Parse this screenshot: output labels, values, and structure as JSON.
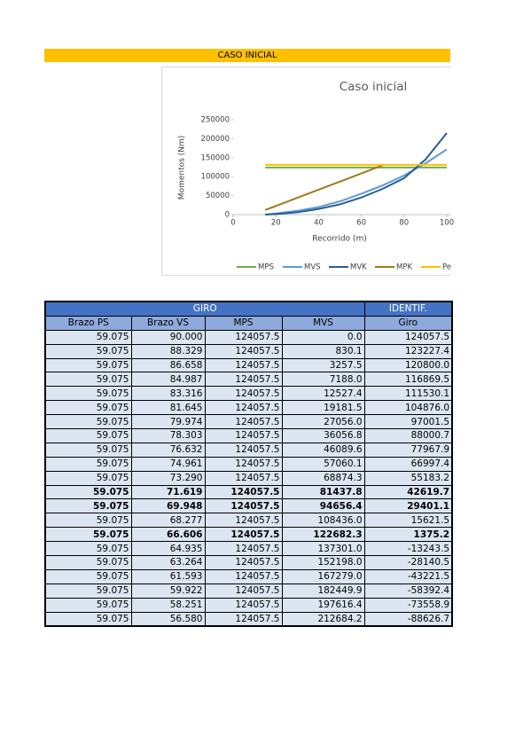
{
  "header": {
    "title": "CASO INICIAL"
  },
  "chart_data": {
    "type": "line",
    "title": "Caso inicial",
    "x_label": "Recorrido (m)",
    "y_label": "Momentos (Nm)",
    "x": [
      15,
      20,
      30,
      40,
      50,
      60,
      70,
      80,
      90,
      100
    ],
    "series": [
      {
        "name": "MPS",
        "color": "#70ad47",
        "values": [
          124057.5,
          124057.5,
          124057.5,
          124057.5,
          124057.5,
          124057.5,
          124057.5,
          124057.5,
          124057.5,
          124057.5
        ]
      },
      {
        "name": "MVS",
        "color": "#5b9bd5",
        "values": [
          0,
          3000,
          10000,
          20000,
          35000,
          55000,
          77000,
          103000,
          135000,
          172000
        ]
      },
      {
        "name": "MVK",
        "color": "#255e91",
        "values": [
          0,
          1500,
          6000,
          15000,
          27000,
          45000,
          68000,
          96000,
          145000,
          215000
        ]
      },
      {
        "name": "MPK",
        "color": "#9e7a1a",
        "values": [
          12000,
          22700,
          44200,
          65600,
          87000,
          108500,
          130000,
          null,
          null,
          null
        ]
      },
      {
        "name": "Pe",
        "color": "#ffc000",
        "values": [
          131000,
          131000,
          131000,
          131000,
          131000,
          131000,
          131000,
          131000,
          131000,
          131000
        ]
      }
    ],
    "xlim": [
      0,
      102
    ],
    "ylim": [
      0,
      250000
    ],
    "xticks": [
      0,
      20,
      40,
      60,
      80,
      100
    ],
    "yticks": [
      0,
      50000,
      100000,
      150000,
      200000,
      250000
    ],
    "legend": "bottom"
  },
  "table": {
    "group_headers": [
      "GIRO",
      "IDENTIF."
    ],
    "columns": [
      "Brazo PS",
      "Brazo VS",
      "MPS",
      "MVS",
      "Giro"
    ],
    "rows": [
      [
        "59.075",
        "90.000",
        "124057.5",
        "0.0",
        "124057.5"
      ],
      [
        "59.075",
        "88.329",
        "124057.5",
        "830.1",
        "123227.4"
      ],
      [
        "59.075",
        "86.658",
        "124057.5",
        "3257.5",
        "120800.0"
      ],
      [
        "59.075",
        "84.987",
        "124057.5",
        "7188.0",
        "116869.5"
      ],
      [
        "59.075",
        "83.316",
        "124057.5",
        "12527.4",
        "111530.1"
      ],
      [
        "59.075",
        "81.645",
        "124057.5",
        "19181.5",
        "104876.0"
      ],
      [
        "59.075",
        "79.974",
        "124057.5",
        "27056.0",
        "97001.5"
      ],
      [
        "59.075",
        "78.303",
        "124057.5",
        "36056.8",
        "88000.7"
      ],
      [
        "59.075",
        "76.632",
        "124057.5",
        "46089.6",
        "77967.9"
      ],
      [
        "59.075",
        "74.961",
        "124057.5",
        "57060.1",
        "66997.4"
      ],
      [
        "59.075",
        "73.290",
        "124057.5",
        "68874.3",
        "55183.2"
      ],
      [
        "59.075",
        "71.619",
        "124057.5",
        "81437.8",
        "42619.7"
      ],
      [
        "59.075",
        "69.948",
        "124057.5",
        "94656.4",
        "29401.1"
      ],
      [
        "59.075",
        "68.277",
        "124057.5",
        "108436.0",
        "15621.5"
      ],
      [
        "59.075",
        "66.606",
        "124057.5",
        "122682.3",
        "1375.2"
      ],
      [
        "59.075",
        "64.935",
        "124057.5",
        "137301.0",
        "-13243.5"
      ],
      [
        "59.075",
        "63.264",
        "124057.5",
        "152198.0",
        "-28140.5"
      ],
      [
        "59.075",
        "61.593",
        "124057.5",
        "167279.0",
        "-43221.5"
      ],
      [
        "59.075",
        "59.922",
        "124057.5",
        "182449.9",
        "-58392.4"
      ],
      [
        "59.075",
        "58.251",
        "124057.5",
        "197616.4",
        "-73558.9"
      ],
      [
        "59.075",
        "56.580",
        "124057.5",
        "212684.2",
        "-88626.7"
      ]
    ],
    "bold_rows": [
      11,
      12,
      14
    ]
  }
}
